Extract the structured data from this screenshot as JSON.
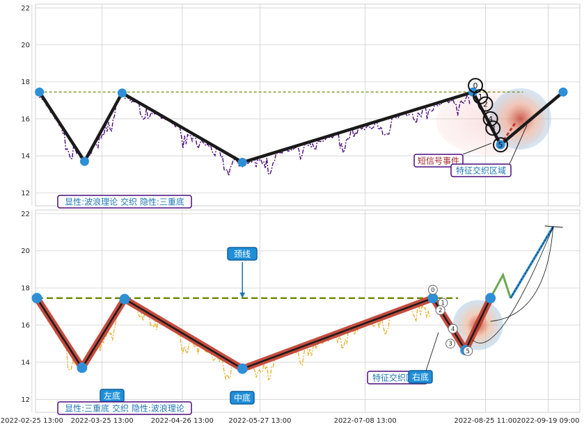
{
  "colors": {
    "grid": "#cfcfcf",
    "wave_top": "#4b0a7a",
    "wave_bottom": "#e8b23a",
    "zigzag": "#1a1a1a",
    "zigzag_outline": "#c0392b",
    "pivot": "#2f8fd6",
    "neckline": "#6e8a0a",
    "legend_border": "#4b0a7a",
    "label_blue": "#1f77b4",
    "label_red": "#a52a2a",
    "callout_bg": "#1f8fd8",
    "projection": "#2f8fd6",
    "projection_up": "#6aa84f"
  },
  "chart_data": [
    {
      "type": "line",
      "panel": "top",
      "ylim": [
        11.3,
        22.2
      ],
      "yticks": [
        12,
        14,
        16,
        18,
        20,
        22
      ],
      "neckline": 17.45,
      "pivots": [
        {
          "x": "2022-02-28",
          "y": 17.45
        },
        {
          "x": "2022-03-18",
          "y": 13.7
        },
        {
          "x": "2022-04-02",
          "y": 17.4
        },
        {
          "x": "2022-05-20",
          "y": 13.65
        },
        {
          "x": "2022-08-20",
          "y": 17.45
        },
        {
          "x": "2022-08-31",
          "y": 14.6
        },
        {
          "x": "2022-09-25",
          "y": 17.45
        }
      ],
      "signal_numbers": [
        "0",
        "1",
        "2",
        "3",
        "4",
        "5"
      ],
      "annotations": {
        "legend": "显性:波浪理论 交织 隐性:三重底",
        "short_signal": "短信号事件",
        "feature_zone": "特征交织区域"
      }
    },
    {
      "type": "line",
      "panel": "bottom",
      "ylim": [
        11.3,
        22.2
      ],
      "yticks": [
        12,
        14,
        16,
        18,
        20,
        22
      ],
      "neckline": 17.45,
      "pivots": [
        {
          "x": "2022-02-27",
          "y": 17.45
        },
        {
          "x": "2022-03-17",
          "y": 13.7
        },
        {
          "x": "2022-04-03",
          "y": 17.4
        },
        {
          "x": "2022-05-20",
          "y": 13.65
        },
        {
          "x": "2022-08-04",
          "y": 17.45
        },
        {
          "x": "2022-08-17",
          "y": 14.65
        },
        {
          "x": "2022-08-27",
          "y": 17.45
        }
      ],
      "projection": [
        {
          "x": "2022-08-27",
          "y": 17.45
        },
        {
          "x": "2022-09-01",
          "y": 18.7
        },
        {
          "x": "2022-09-04",
          "y": 17.45
        },
        {
          "x": "2022-09-21",
          "y": 21.3
        }
      ],
      "signal_numbers": [
        "0",
        "1",
        "2",
        "3",
        "4",
        "5"
      ],
      "annotations": {
        "neckline_label": "颈线",
        "left_bottom": "左底",
        "middle_bottom": "中底",
        "right_bottom": "右底",
        "feature_zone": "特征交织区域",
        "legend": "显性:三重底 交织 隐性:波浪理论"
      }
    }
  ],
  "x_axis": {
    "ticks": [
      "2022-02-25 13:00",
      "2022-03-25 13:00",
      "2022-04-26 13:00",
      "2022-05-27 13:00",
      "2022-07-08 13:00",
      "2022-08-25 11:00",
      "2022-09-19 09:00"
    ]
  }
}
